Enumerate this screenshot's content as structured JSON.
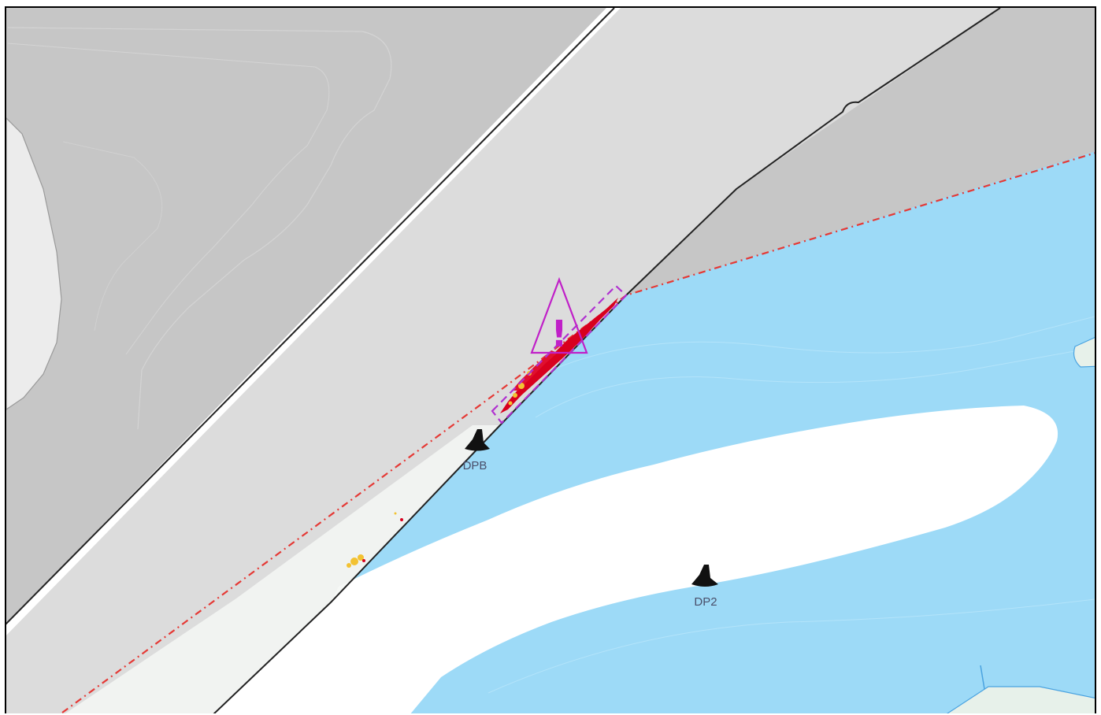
{
  "map": {
    "colors": {
      "land_dark": "#c6c6c6",
      "land_light": "#dcdcdc",
      "land_lightest": "#ececec",
      "water": "#9ddaf7",
      "sandbar": "#ffffff",
      "boundary": "#e53935",
      "warning": "#c020c8",
      "detection_red": "#d8001e",
      "detection_yellow": "#f3c232",
      "channel": "#4aa3e0"
    },
    "markers": [
      {
        "id": "DPB",
        "label": "DPB",
        "icon": "depth-point-icon"
      },
      {
        "id": "DP2",
        "label": "DP2",
        "icon": "depth-point-icon"
      }
    ],
    "warning": {
      "icon": "warning-triangle-icon",
      "symbol": "!"
    }
  }
}
